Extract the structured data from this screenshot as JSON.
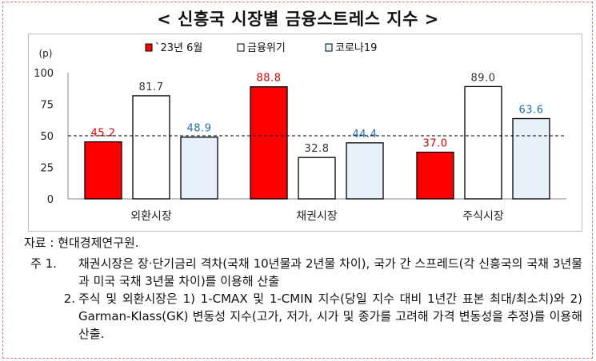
{
  "title": "< 신흥국 시장별 금융스트레스 지수 >",
  "chart_data": {
    "type": "bar",
    "unit_label": "(p)",
    "categories": [
      "외환시장",
      "채권시장",
      "주식시장"
    ],
    "series": [
      {
        "name": "`23년 6월",
        "values": [
          45.2,
          88.8,
          37.0
        ],
        "labels": [
          "45.2",
          "88.8",
          "37.0"
        ],
        "fill": "#ff0000",
        "label_color": "#e00000"
      },
      {
        "name": "금융위기",
        "values": [
          81.7,
          32.8,
          89.0
        ],
        "labels": [
          "81.7",
          "32.8",
          "89.0"
        ],
        "fill": "#ffffff",
        "label_color": "#333333"
      },
      {
        "name": "코로나19",
        "values": [
          48.9,
          44.4,
          63.6
        ],
        "labels": [
          "48.9",
          "44.4",
          "63.6"
        ],
        "fill": "#e8f0fb",
        "label_color": "#1f6fb2"
      }
    ],
    "y_ticks": [
      "0",
      "25",
      "50",
      "75",
      "100"
    ],
    "ylim": [
      0,
      100
    ],
    "reference_line": 50,
    "legend_position": "top-center"
  },
  "source": "자료 : 현대경제연구원.",
  "notes": [
    {
      "lead": "주 1.",
      "text": "채권시장은 장·단기금리 격차(국채 10년물과 2년물 차이), 국가 간 스프레드(각 신흥국의 국채 3년물과 미국 국채 3년물 차이)를 이용해 산출"
    },
    {
      "lead": "2.",
      "text": "주식 및 외환시장은 1) 1-CMAX 및 1-CMIN 지수(당일 지수 대비 1년간 표본 최대/최소치)와 2) Garman-Klass(GK) 변동성 지수(고가, 저가, 시가 및 종가를 고려해 가격 변동성을 추정)를 이용해 산출."
    }
  ]
}
